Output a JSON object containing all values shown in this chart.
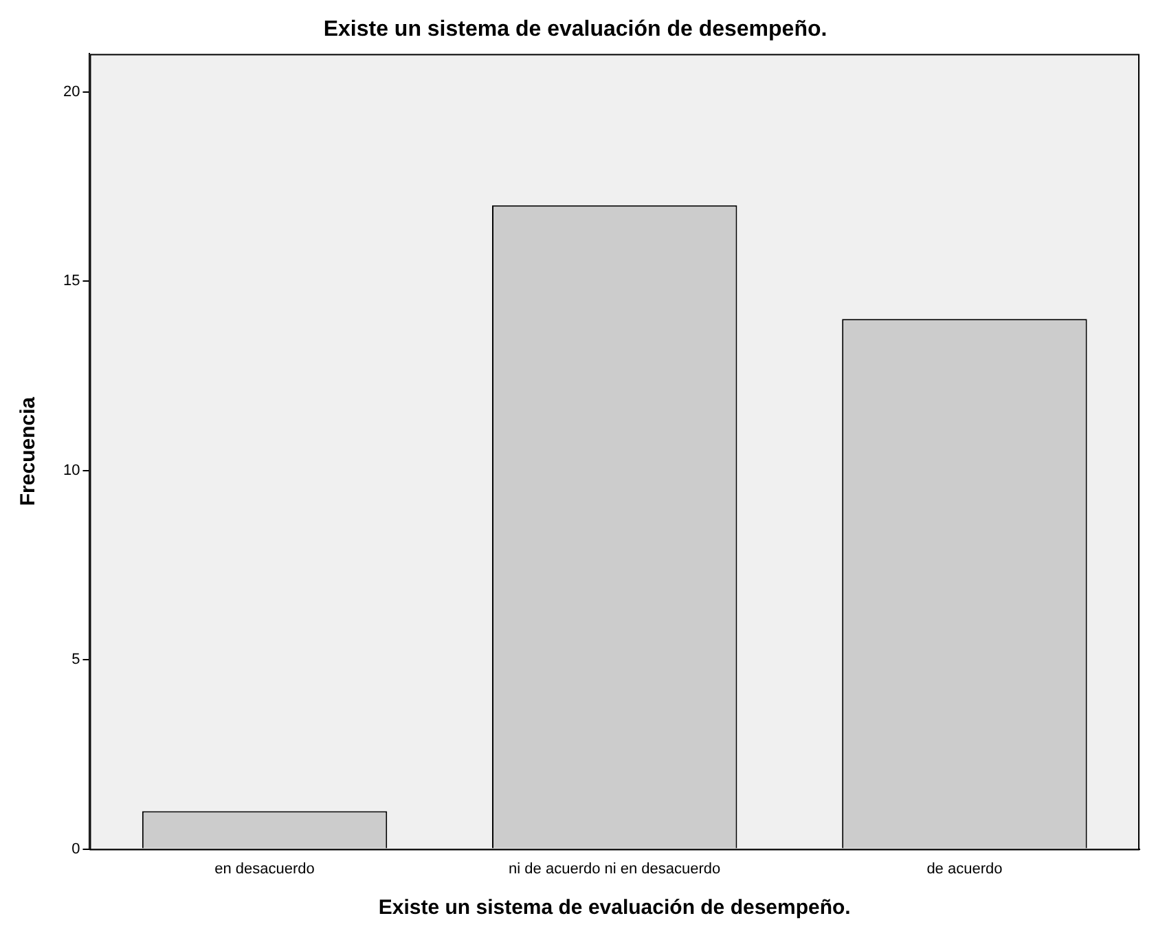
{
  "chart_data": {
    "type": "bar",
    "title": "Existe un sistema de evaluación de desempeño.",
    "xlabel": "Existe un sistema de evaluación de desempeño.",
    "ylabel": "Frecuencia",
    "categories": [
      "en desacuerdo",
      "ni de acuerdo ni en desacuerdo",
      "de acuerdo"
    ],
    "values": [
      1,
      17,
      14
    ],
    "color": "#cccccc",
    "ylim": [
      0,
      21
    ],
    "yticks": [
      0,
      5,
      10,
      15,
      20
    ],
    "grid": false,
    "legend": false
  }
}
